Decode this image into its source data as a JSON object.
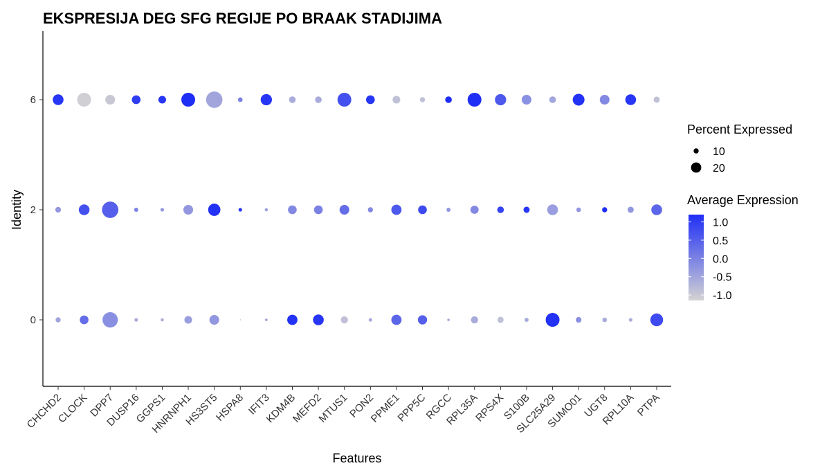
{
  "chart_data": {
    "type": "dot",
    "title": "EKSPRESIJA DEG SFG REGIJE PO BRAAK STADIJIMA",
    "x_label": "Features",
    "y_label": "Identity",
    "categories": [
      "CHCHD2",
      "CLOCK",
      "DPP7",
      "DUSP16",
      "GGPS1",
      "HNRNPH1",
      "HS3ST5",
      "HSPA8",
      "IFIT3",
      "KDM4B",
      "MEFD2",
      "MTUS1",
      "PON2",
      "PPME1",
      "PPP5C",
      "RGCC",
      "RPL35A",
      "RPS4X",
      "S100B",
      "SLC25A29",
      "SUMO01",
      "UGT8",
      "RPL10A",
      "PTPA"
    ],
    "identities": [
      {
        "name": "0",
        "avg_expression": [
          -0.5,
          0.3,
          -0.2,
          -0.6,
          -0.6,
          -0.4,
          -0.3,
          -0.7,
          -0.5,
          1.15,
          1.1,
          -0.9,
          -0.6,
          0.4,
          0.5,
          -0.6,
          -0.6,
          -0.9,
          -0.6,
          1.15,
          -0.2,
          -0.6,
          -0.6,
          0.8
        ],
        "pct_expressed": [
          10,
          17,
          30,
          7,
          6,
          15,
          19,
          2,
          5,
          20,
          21,
          14,
          7,
          20,
          18,
          5,
          14,
          12,
          8,
          27,
          11,
          9,
          7,
          25
        ]
      },
      {
        "name": "2",
        "avg_expression": [
          -0.3,
          0.7,
          0.5,
          0.0,
          -0.3,
          -0.3,
          1.15,
          1.1,
          -0.4,
          -0.1,
          0.0,
          0.3,
          -0.1,
          0.6,
          0.8,
          -0.3,
          -0.1,
          0.9,
          1.1,
          -0.4,
          -0.3,
          1.2,
          -0.3,
          0.4
        ],
        "pct_expressed": [
          11,
          21,
          32,
          8,
          7,
          19,
          24,
          7,
          6,
          17,
          17,
          19,
          10,
          20,
          17,
          8,
          16,
          13,
          12,
          21,
          9,
          10,
          12,
          21
        ]
      },
      {
        "name": "6",
        "avg_expression": [
          1.1,
          -1.1,
          -1.0,
          1.0,
          1.1,
          1.2,
          -0.5,
          0.0,
          1.1,
          -0.6,
          -0.6,
          0.7,
          1.1,
          -0.9,
          -0.9,
          1.2,
          1.2,
          0.6,
          -0.2,
          -0.5,
          1.15,
          -0.1,
          1.1,
          -0.9
        ],
        "pct_expressed": [
          21,
          27,
          19,
          17,
          15,
          27,
          32,
          9,
          22,
          13,
          13,
          27,
          17,
          15,
          10,
          13,
          27,
          22,
          19,
          13,
          23,
          19,
          21,
          12
        ]
      }
    ],
    "size_legend_title": "Percent Expressed",
    "size_legend": [
      10,
      20
    ],
    "color_legend_title": "Average Expression",
    "color_lim": [
      -1.15,
      1.2
    ],
    "color_ticks": [
      {
        "value": 1,
        "label": "1.0"
      },
      {
        "value": 0.5,
        "label": "0.5"
      },
      {
        "value": 0,
        "label": "0.0"
      },
      {
        "value": -0.5,
        "label": "-0.5"
      },
      {
        "value": -1,
        "label": "-1.0"
      }
    ],
    "color_low": "#d3d3d3",
    "color_high": "#1f2ef5"
  }
}
